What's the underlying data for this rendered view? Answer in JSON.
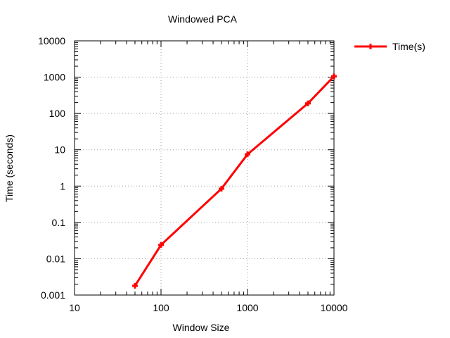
{
  "chart_data": {
    "type": "line",
    "title": "Windowed PCA",
    "xlabel": "Window Size",
    "ylabel": "Time (seconds)",
    "x_scale": "log",
    "y_scale": "log",
    "xlim": [
      10,
      10000
    ],
    "ylim": [
      0.001,
      10000
    ],
    "x_ticks": [
      "10",
      "100",
      "1000",
      "10000"
    ],
    "y_ticks": [
      "0.001",
      "0.01",
      "0.1",
      "1",
      "10",
      "100",
      "1000",
      "10000"
    ],
    "grid": true,
    "legend_position": "outside-top-right",
    "series": [
      {
        "name": "Time(s)",
        "color": "#ff0000",
        "marker": "plus",
        "x": [
          50,
          100,
          500,
          1000,
          5000,
          10000
        ],
        "y": [
          0.0018,
          0.024,
          0.85,
          7.5,
          190,
          1050
        ]
      }
    ]
  }
}
